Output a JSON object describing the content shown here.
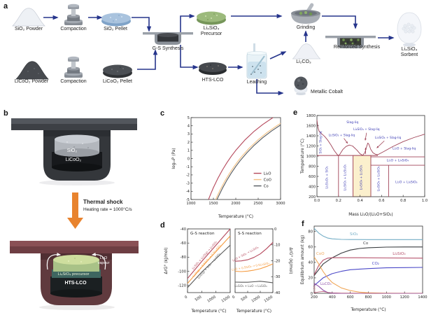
{
  "panels": {
    "a": "a",
    "b": "b",
    "c": "c",
    "d": "d",
    "e": "e",
    "f": "f"
  },
  "panel_a": {
    "labels": {
      "sio2_powder": "SiO₂ Powder",
      "compaction_top": "Compaction",
      "sio2_pellet": "SiO₂ Pellet",
      "gs_synthesis": "G-S Synthesis",
      "precursor_line1": "Li₄SiO₄",
      "precursor_line2": "Precursor",
      "grinding": "Grinding",
      "li2co3": "Li₂CO₃",
      "reinforced_synthesis": "Reinforced Synthesis",
      "sorbent_line1": "Li₄SiO₄",
      "sorbent_line2": "Sorbent",
      "licoo2_powder": "LiCoO₂ Powder",
      "compaction_bottom": "Compaction",
      "licoo2_pellet": "LiCoO₂ Pellet",
      "hts_lco": "HTS-LCO",
      "leaching": "Leaching",
      "metallic_cobalt": "Metallic Cobalt"
    }
  },
  "panel_b": {
    "labels": {
      "sio2": "SiO₂",
      "licoo2": "LiCoO₂",
      "thermal_shock": "Thermal shock",
      "heating_rate": "Heating rate = 1000°C/s",
      "li2o_line1": "Li₂O",
      "li2o_line2": "vapour",
      "precursor": "Li₄SiO₄ precursor",
      "hts_lco": "HTS-LCO"
    }
  },
  "colors": {
    "flow_arrow": "#26358c",
    "crimson": "#b5485c",
    "tan": "#f2c183",
    "orange": "#f59b40",
    "dark_gray": "#555a60",
    "maroon": "#a04458",
    "label_blue": "#3c3cb4",
    "teal": "#74aec6",
    "blue": "#4b49c8",
    "purple": "#8d4fa8",
    "thermal_orange": "#e8832e"
  },
  "chart_data": [
    {
      "id": "c",
      "type": "line",
      "xlim": [
        1000,
        3000
      ],
      "ylim": [
        -5,
        5
      ],
      "xticks": [
        1000,
        1500,
        2000,
        2500,
        3000
      ],
      "yticks": [
        5,
        4,
        3,
        2,
        1,
        0,
        -1,
        -2,
        -3,
        -4,
        -5
      ],
      "xlabel": "Temperature (°C)",
      "ylabel": "log₁₀P (Pa)",
      "legend": {
        "fx": 0.7,
        "fy": 0.68
      },
      "series": [
        {
          "name": "Li₂O",
          "color": "#b5485c",
          "x": [
            1390,
            1450,
            1500,
            1600,
            1700,
            1800,
            1900,
            2000,
            2200,
            2400,
            2600,
            2830
          ],
          "y": [
            -5,
            -4.2,
            -3.55,
            -2.42,
            -1.41,
            -0.52,
            0.28,
            1.0,
            2.25,
            3.28,
            4.15,
            5.0
          ]
        },
        {
          "name": "CoO",
          "color": "#f2c183",
          "x": [
            1550,
            1650,
            1750,
            1850,
            1950,
            2050,
            2150,
            2300,
            2500,
            2700,
            2900,
            3000
          ],
          "y": [
            -5,
            -3.84,
            -2.8,
            -1.88,
            -1.06,
            -0.31,
            0.37,
            1.27,
            2.31,
            3.19,
            3.95,
            4.3
          ]
        },
        {
          "name": "Co",
          "color": "#555a60",
          "x": [
            1580,
            1700,
            1800,
            1900,
            2000,
            2100,
            2250,
            2400,
            2600,
            2800,
            3000
          ],
          "y": [
            -5,
            -3.65,
            -2.66,
            -1.77,
            -0.97,
            -0.24,
            0.72,
            1.56,
            2.54,
            3.37,
            4.1
          ]
        }
      ]
    },
    {
      "id": "d_left",
      "type": "line",
      "xlim": [
        0,
        1500
      ],
      "ylim": [
        -130,
        -40
      ],
      "xticks": [
        0,
        500,
        1000,
        1500
      ],
      "yticks": [
        -40,
        -60,
        -80,
        -100,
        -120
      ],
      "xtick_rot": -32,
      "xlabel": "Temperature (°C)",
      "ylabel": "ΔrG° (kJ/mol)",
      "title": "G-S reaction",
      "series": [
        {
          "name": "Li₂SiO₃ + Li₂O(g) → Li₄SiO₄",
          "color": "#b5485c",
          "x": [
            0,
            250,
            500,
            750,
            1000,
            1250,
            1500
          ],
          "y": [
            -110,
            -98,
            -86,
            -74.5,
            -63,
            -51.5,
            -40
          ]
        },
        {
          "name": "Li₂O(g) + 0.5SiO₂ → 0.5Li₄SiO₄",
          "color": "#f59b40",
          "x": [
            0,
            250,
            500,
            750,
            1000,
            1250,
            1500
          ],
          "y": [
            -117,
            -105.5,
            -94,
            -83,
            -72,
            -61,
            -50
          ]
        },
        {
          "name": "Li₂O(g) + SiO₂ → Li₂SiO₃",
          "color": "#5a5a5a",
          "x": [
            0,
            250,
            500,
            750,
            1000,
            1250,
            1500
          ],
          "y": [
            -123,
            -112,
            -101,
            -91.5,
            -82,
            -72.5,
            -63
          ]
        }
      ],
      "annotations": [
        {
          "text": "Li₂SiO₃ + Li₂O(g) → Li₄SiO₄",
          "x": 620,
          "y": -78,
          "rot": -49,
          "color": "#b5485c",
          "size": 4
        },
        {
          "text": "Li₂O(g) + 0.5SiO₂ → 0.5Li₄SiO₄",
          "x": 700,
          "y": -86,
          "rot": -49,
          "color": "#f59b40",
          "size": 4
        },
        {
          "text": "Li₂O(g) + SiO₂ → Li₂SiO₃",
          "x": 780,
          "y": -93,
          "rot": -49,
          "color": "#5a5a5a",
          "size": 4
        }
      ]
    },
    {
      "id": "d_right",
      "type": "line",
      "xlim": [
        0,
        1500
      ],
      "ylim": [
        -40,
        0
      ],
      "xticks": [
        0,
        500,
        1000,
        1500
      ],
      "yticks": [
        0,
        -10,
        -20,
        -30,
        -40
      ],
      "yaxis_side": "right",
      "xtick_rot": -32,
      "xlabel": "Temperature (°C)",
      "ylabel": "ΔrG° (kJ/mol)",
      "title": "S-S reaction",
      "series": [
        {
          "name": "Li₂O + SiO₂ → Li₂SiO₃",
          "color": "#b5485c",
          "x": [
            0,
            250,
            500,
            750,
            1000,
            1250,
            1500
          ],
          "y": [
            -20.3,
            -20.1,
            -19.4,
            -17.9,
            -15.7,
            -12.4,
            -8.5
          ]
        },
        {
          "name": "Li₂O + 0.5SiO₂ → 0.5Li₄SiO₄",
          "color": "#f59b40",
          "x": [
            0,
            250,
            500,
            750,
            1000,
            1250,
            1500
          ],
          "y": [
            -26.6,
            -26.8,
            -26.5,
            -25.9,
            -25,
            -23.6,
            -22
          ]
        },
        {
          "name": "Li₂SiO₃ + Li₂O → Li₄SiO₄",
          "color": "#5a5a5a",
          "x": [
            0,
            250,
            500,
            750,
            1000,
            1250,
            1500
          ],
          "y": [
            -33.4,
            -33.5,
            -33.5,
            -33.2,
            -32.9,
            -33.3,
            -33.8
          ]
        }
      ],
      "annotations": [
        {
          "text": "Li₂O + SiO₂ → Li₂SiO₃",
          "x": 430,
          "y": -16.2,
          "rot": -28,
          "color": "#b5485c",
          "size": 4
        },
        {
          "text": "Li₂O + 0.5SiO₂ → 0.5Li₄SiO₄",
          "x": 620,
          "y": -24.2,
          "rot": -10,
          "color": "#f59b40",
          "size": 4
        },
        {
          "text": "Li₂SiO₃ + Li₂O → Li₄SiO₄",
          "x": 620,
          "y": -36.4,
          "rot": 0,
          "color": "#5a5a5a",
          "size": 4
        }
      ]
    },
    {
      "id": "e",
      "type": "line",
      "xlim": [
        0,
        1
      ],
      "ylim": [
        200,
        1800
      ],
      "xticks": [
        0,
        0.2,
        0.4,
        0.6,
        0.8,
        1.0
      ],
      "xtick_labels": [
        "0.0",
        "0.2",
        "0.4",
        "0.6",
        "0.8",
        "1.0"
      ],
      "yticks": [
        1800,
        1600,
        1400,
        1200,
        1000,
        800,
        600,
        400,
        200
      ],
      "xlabel": "Mass Li₂O/(Li₂O+SiO₂)",
      "ylabel": "Temperature (°C)",
      "line_color": "#a04458",
      "rects": [
        {
          "x1": 0.335,
          "x2": 0.5,
          "y1": 200,
          "y2": 1012,
          "fill": "#fbf0cd",
          "stroke": "#b0564a"
        }
      ],
      "hlines": [
        {
          "y": 1012,
          "x1": 0,
          "x2": 0.565
        },
        {
          "y": 985,
          "x1": 0.5,
          "x2": 1
        },
        {
          "y": 820,
          "x1": 0.5,
          "x2": 1
        }
      ],
      "vlines": [
        {
          "x": 0.2,
          "y1": 200,
          "y2": 1012
        },
        {
          "x": 0.335,
          "y1": 200,
          "y2": 1012
        },
        {
          "x": 0.5,
          "y1": 200,
          "y2": 1012
        },
        {
          "x": 0.665,
          "y1": 200,
          "y2": 820
        }
      ],
      "series": [
        {
          "name": "liquidus",
          "color": "#a04458",
          "width": 0.9,
          "x": [
            0,
            0.01,
            0.02,
            0.04,
            0.07,
            0.1,
            0.13,
            0.16,
            0.19,
            0.205,
            0.24,
            0.27,
            0.3,
            0.33,
            0.37,
            0.4,
            0.425,
            0.445,
            0.462,
            0.472,
            0.482,
            0.5,
            0.52,
            0.545,
            0.565,
            0.62,
            0.7,
            0.8,
            0.9,
            1.0
          ],
          "y": [
            1713,
            1560,
            1490,
            1445,
            1390,
            1315,
            1220,
            1110,
            1025,
            1012,
            1130,
            1190,
            1218,
            1200,
            1120,
            1045,
            1015,
            1070,
            1190,
            1258,
            1235,
            1130,
            1065,
            1035,
            1028,
            1090,
            1185,
            1285,
            1365,
            1432
          ]
        }
      ],
      "arrows": [
        {
          "x1": 0.25,
          "y1": 1350,
          "x2": 0.285,
          "y2": 1250,
          "color": "#a04458"
        },
        {
          "x1": 0.46,
          "y1": 1460,
          "x2": 0.448,
          "y2": 1310,
          "color": "#a04458"
        },
        {
          "x1": 0.625,
          "y1": 1300,
          "x2": 0.555,
          "y2": 1160,
          "color": "#a04458"
        },
        {
          "x1": 0.452,
          "y1": 1040,
          "x2": 0.452,
          "y2": 1165,
          "color": "#a04458"
        }
      ],
      "annotations": [
        {
          "text": "Slag-liq",
          "x": 0.33,
          "y": 1650,
          "color": "#3c3cb4",
          "size": 4.6
        },
        {
          "text": "SiO₂ + Slag-liq",
          "x": 0.042,
          "y": 1270,
          "rot": -90,
          "color": "#3c3cb4",
          "size": 4.4
        },
        {
          "text": "Li₂SiO₃ + Slag-liq",
          "x": 0.23,
          "y": 1390,
          "color": "#3c3cb4",
          "size": 4.4
        },
        {
          "text": "Li₄SiO₄ + Slag-liq",
          "x": 0.46,
          "y": 1510,
          "color": "#3c3cb4",
          "size": 4.4
        },
        {
          "text": "Li₄SiO₄ + Slag-liq",
          "x": 0.66,
          "y": 1345,
          "color": "#3c3cb4",
          "size": 4.4
        },
        {
          "text": "Li₂O + Slag-liq",
          "x": 0.81,
          "y": 1130,
          "color": "#3c3cb4",
          "size": 4.6
        },
        {
          "text": "Li₂O + Li₄SiO₄",
          "x": 0.75,
          "y": 895,
          "color": "#3c3cb4",
          "size": 4.6
        },
        {
          "text": "Li₂Si₂O₅ + SiO₂",
          "x": 0.1,
          "y": 580,
          "rot": -90,
          "color": "#3c3cb4",
          "size": 4.4
        },
        {
          "text": "Li₂SiO₃ + Li₂Si₂O₅",
          "x": 0.268,
          "y": 580,
          "rot": -90,
          "color": "#3c3cb4",
          "size": 4.4
        },
        {
          "text": "Li₄SiO₄ + Li₂SiO₃",
          "x": 0.418,
          "y": 580,
          "rot": -90,
          "color": "#3c3cb4",
          "size": 4.4
        },
        {
          "text": "Li₄SiO₄ + Li₈SiO₆",
          "x": 0.582,
          "y": 555,
          "rot": -90,
          "color": "#3c3cb4",
          "size": 4.4
        },
        {
          "text": "Li₂O + Li₈SiO₆",
          "x": 0.83,
          "y": 470,
          "color": "#3c3cb4",
          "size": 4.6
        }
      ]
    },
    {
      "id": "f",
      "type": "line",
      "xlim": [
        200,
        1400
      ],
      "ylim": [
        0,
        87
      ],
      "xticks": [
        200,
        400,
        600,
        800,
        1000,
        1200,
        1400
      ],
      "yticks": [
        0,
        20,
        40,
        60,
        80
      ],
      "xlabel": "Temperature (°C)",
      "ylabel": "Equilibrium amount (kg)",
      "series": [
        {
          "name": "SiO₂",
          "color": "#74aec6",
          "x": [
            200,
            250,
            300,
            350,
            400,
            500,
            600,
            800,
            1000,
            1200,
            1400
          ],
          "y": [
            84,
            78,
            74,
            71.5,
            70.5,
            69.8,
            69.6,
            69.5,
            69.5,
            69.5,
            69.5
          ]
        },
        {
          "name": "Co",
          "color": "#3a3d40",
          "x": [
            200,
            300,
            400,
            500,
            600,
            700,
            800,
            1000,
            1200,
            1400
          ],
          "y": [
            23,
            38,
            46,
            52,
            56,
            58,
            59,
            59.8,
            60,
            60
          ]
        },
        {
          "name": "Li₂SiO₃",
          "color": "#b5506a",
          "x": [
            200,
            250,
            300,
            350,
            400,
            500,
            700,
            1000,
            1400
          ],
          "y": [
            24,
            36,
            43,
            45.5,
            46,
            46,
            46,
            45.8,
            45.5
          ]
        },
        {
          "name": "CO₂",
          "color": "#4b49c8",
          "x": [
            200,
            300,
            400,
            500,
            600,
            800,
            1000,
            1200,
            1400
          ],
          "y": [
            10,
            20,
            25.5,
            28.5,
            30.5,
            32,
            33,
            33.3,
            33.5
          ]
        },
        {
          "name": "CoO",
          "color": "#f0a85a",
          "x": [
            200,
            250,
            300,
            350,
            400,
            500,
            600,
            700,
            800,
            1000,
            1200,
            1400
          ],
          "y": [
            47,
            38,
            28,
            20,
            14,
            7,
            3.5,
            1.5,
            0.6,
            0.1,
            0,
            0
          ]
        },
        {
          "name": "Li₂CO₃",
          "color": "#8d4fa8",
          "x": [
            200,
            250,
            300,
            350,
            400,
            500,
            600,
            1400
          ],
          "y": [
            13,
            9,
            4,
            1,
            0.2,
            0,
            0,
            0
          ]
        },
        {
          "name": "Li₄SiO₄",
          "color": "#b5506a",
          "width": 0.7,
          "x": [
            200,
            250,
            300,
            350,
            400,
            500,
            700,
            1000,
            1400
          ],
          "y": [
            0.5,
            1.8,
            2.3,
            1.2,
            0.6,
            0.3,
            0.2,
            0.2,
            0.2
          ]
        }
      ],
      "annotations": [
        {
          "text": "SiO₂",
          "x": 640,
          "y": 75,
          "color": "#74aec6",
          "size": 5.5
        },
        {
          "text": "Co",
          "x": 770,
          "y": 63.5,
          "color": "#3a3d40",
          "size": 5.5
        },
        {
          "text": "Li₂SiO₃",
          "x": 1140,
          "y": 50,
          "color": "#b5506a",
          "size": 5.5
        },
        {
          "text": "CO₂",
          "x": 880,
          "y": 37,
          "color": "#4b49c8",
          "size": 5.5
        },
        {
          "text": "CoO",
          "x": 268,
          "y": 50,
          "color": "#f0a85a",
          "size": 5.5
        },
        {
          "text": "Li₂CO₃",
          "x": 330,
          "y": 11,
          "color": "#8d4fa8",
          "size": 5
        },
        {
          "text": "Li₄SiO₄",
          "x": 213,
          "y": 6.5,
          "rot": -90,
          "color": "#b5506a",
          "size": 3.6
        }
      ]
    }
  ]
}
